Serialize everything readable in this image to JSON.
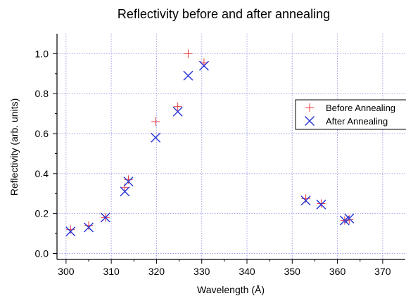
{
  "chart_data": {
    "type": "scatter",
    "title": "Reflectivity before and after annealing",
    "xlabel": "Wavelength (Å)",
    "ylabel": "Reflectivity (arb. units)",
    "xlim": [
      298,
      375
    ],
    "ylim": [
      -0.03,
      1.1
    ],
    "xticks": [
      300,
      310,
      320,
      330,
      340,
      350,
      360,
      370
    ],
    "yticks": [
      0.0,
      0.2,
      0.4,
      0.6,
      0.8,
      1.0
    ],
    "ytick_labels": [
      "0.0",
      "0.2",
      "0.4",
      "0.6",
      "0.8",
      "1.0"
    ],
    "grid": true,
    "legend_position": "right",
    "series": [
      {
        "name": "Before Annealing",
        "marker": "plus",
        "color": "#e8383d",
        "points": [
          {
            "x": 301.0,
            "y": 0.12
          },
          {
            "x": 305.0,
            "y": 0.14
          },
          {
            "x": 308.7,
            "y": 0.18
          },
          {
            "x": 313.0,
            "y": 0.33
          },
          {
            "x": 313.8,
            "y": 0.37
          },
          {
            "x": 319.8,
            "y": 0.66
          },
          {
            "x": 324.7,
            "y": 0.735
          },
          {
            "x": 327.0,
            "y": 1.0
          },
          {
            "x": 330.5,
            "y": 0.955
          },
          {
            "x": 353.0,
            "y": 0.275
          },
          {
            "x": 356.4,
            "y": 0.25
          },
          {
            "x": 361.6,
            "y": 0.165
          },
          {
            "x": 362.6,
            "y": 0.17
          }
        ]
      },
      {
        "name": "After Annealing",
        "marker": "x",
        "color": "#2433d6",
        "points": [
          {
            "x": 301.0,
            "y": 0.11
          },
          {
            "x": 305.0,
            "y": 0.13
          },
          {
            "x": 308.7,
            "y": 0.18
          },
          {
            "x": 313.0,
            "y": 0.31
          },
          {
            "x": 313.8,
            "y": 0.36
          },
          {
            "x": 319.8,
            "y": 0.58
          },
          {
            "x": 324.7,
            "y": 0.71
          },
          {
            "x": 327.0,
            "y": 0.89
          },
          {
            "x": 330.5,
            "y": 0.94
          },
          {
            "x": 353.0,
            "y": 0.265
          },
          {
            "x": 356.4,
            "y": 0.245
          },
          {
            "x": 361.6,
            "y": 0.165
          },
          {
            "x": 362.6,
            "y": 0.175
          }
        ]
      }
    ]
  }
}
